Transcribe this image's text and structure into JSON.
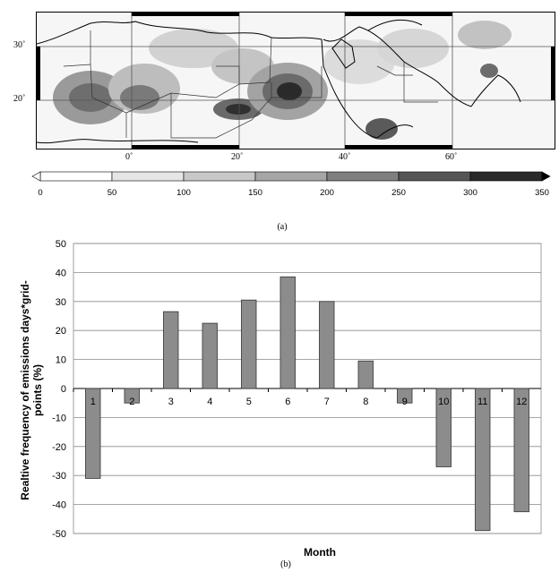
{
  "map_panel": {
    "lat_labels": [
      "30˚",
      "20˚"
    ],
    "lon_labels": [
      "0˚",
      "20˚",
      "40˚",
      "60˚"
    ],
    "colorbar": {
      "ticks": [
        "0",
        "50",
        "100",
        "150",
        "200",
        "250",
        "300",
        "350"
      ],
      "colors": [
        "#ffffff",
        "#e6e6e6",
        "#c8c8c8",
        "#a6a6a6",
        "#7f7f7f",
        "#555555",
        "#2a2a2a"
      ]
    },
    "caption": "(a)"
  },
  "bar_panel": {
    "caption": "(b)",
    "bar_color": "#8c8c8c"
  },
  "chart_data": {
    "type": "bar",
    "categories": [
      "1",
      "2",
      "3",
      "4",
      "5",
      "6",
      "7",
      "8",
      "9",
      "10",
      "11",
      "12"
    ],
    "values": [
      -31,
      -5,
      26.5,
      22.5,
      30.5,
      38.5,
      30,
      9.5,
      -5,
      -27,
      -49,
      -42.5
    ],
    "ylabel": "Realtive frequency of emissions days*grid-points (%)",
    "xlabel": "Month",
    "ylim": [
      -50,
      50
    ],
    "yticks": [
      "50",
      "40",
      "30",
      "20",
      "10",
      "0",
      "-10",
      "-20",
      "-30",
      "-40",
      "-50"
    ],
    "grid": true
  }
}
